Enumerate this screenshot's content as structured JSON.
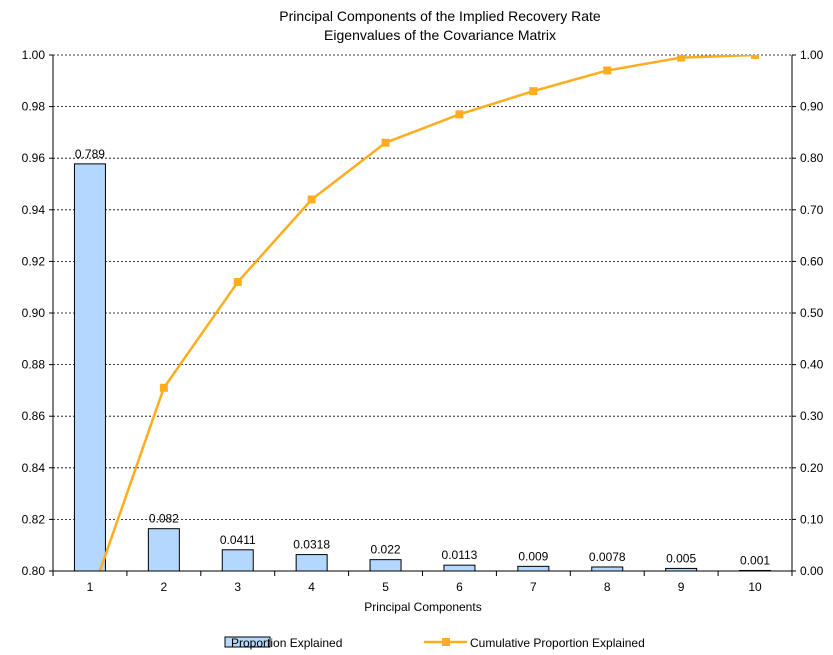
{
  "chart_data": {
    "type": "bar",
    "title": "Principal Components of the Implied Recovery Rate",
    "subtitle": "Eigenvalues of the Covariance Matrix",
    "xlabel": "Principal Components",
    "ylabel_left": "",
    "ylabel_right": "",
    "categories": [
      "1",
      "2",
      "3",
      "4",
      "5",
      "6",
      "7",
      "8",
      "9",
      "10"
    ],
    "left_axis": {
      "ylim": [
        0.8,
        1.0
      ],
      "ticks": [
        "0.80",
        "0.82",
        "0.84",
        "0.86",
        "0.88",
        "0.90",
        "0.92",
        "0.94",
        "0.96",
        "0.98",
        "1.00"
      ]
    },
    "right_axis": {
      "ylim": [
        0.0,
        1.0
      ],
      "ticks": [
        "0.00",
        "0.10",
        "0.20",
        "0.30",
        "0.40",
        "0.50",
        "0.60",
        "0.70",
        "0.80",
        "0.90",
        "1.00"
      ]
    },
    "grid": true,
    "legend_position": "bottom",
    "series": [
      {
        "name": "Proportion Explained",
        "type": "bar",
        "axis": "right",
        "color": "#b3d7ff",
        "edge_color": "#000000",
        "values": [
          0.789,
          0.082,
          0.0411,
          0.0318,
          0.022,
          0.0113,
          0.009,
          0.0078,
          0.005,
          0.001
        ],
        "labels": [
          "0.789",
          "0.082",
          "0.0411",
          "0.0318",
          "0.022",
          "0.0113",
          "0.009",
          "0.0078",
          "0.005",
          "0.001"
        ]
      },
      {
        "name": "Cumulative Proportion Explained",
        "type": "line",
        "axis": "left",
        "color": "#ffad1f",
        "marker": "square",
        "values": [
          0.789,
          0.871,
          0.912,
          0.944,
          0.966,
          0.977,
          0.986,
          0.994,
          0.999,
          1.0
        ]
      }
    ]
  }
}
